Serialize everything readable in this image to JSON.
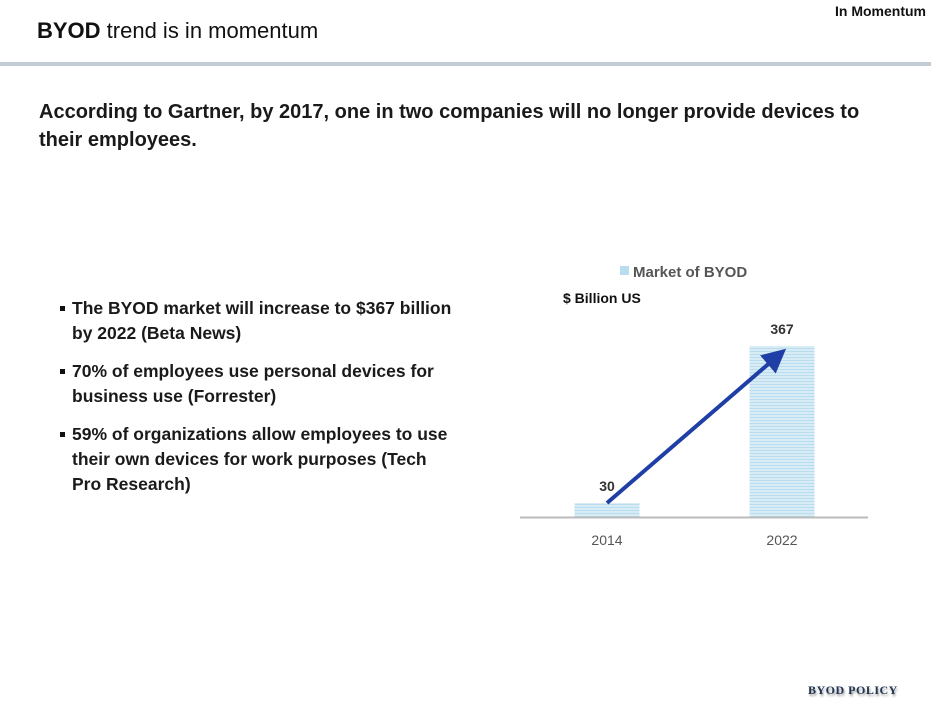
{
  "header": {
    "title_bold": "BYOD",
    "title_rest": " trend is in momentum",
    "tag": "In Momentum"
  },
  "lead": "According to Gartner, by 2017, one in two companies will no longer provide devices to their employees.",
  "bullets": [
    "The BYOD market will increase to $367 billion by 2022 (Beta News)",
    "70% of employees use personal devices for business use (Forrester)",
    "59% of organizations allow employees to use their own devices for work purposes (Tech Pro Research)"
  ],
  "footer": "BYOD POLICY",
  "chart_data": {
    "type": "bar",
    "categories": [
      "2014",
      "2022"
    ],
    "series": [
      {
        "name": "Market of BYOD",
        "values": [
          30,
          367
        ]
      }
    ],
    "unit_label": "$ Billion US",
    "data_labels": [
      "30",
      "367"
    ],
    "legend": "top",
    "grid": false,
    "ylim": [
      0,
      367
    ],
    "annotation": "trend arrow from 2014 to 2022",
    "colors": {
      "bar": "#cfe6f2",
      "arrow": "#1f3fa6"
    }
  }
}
